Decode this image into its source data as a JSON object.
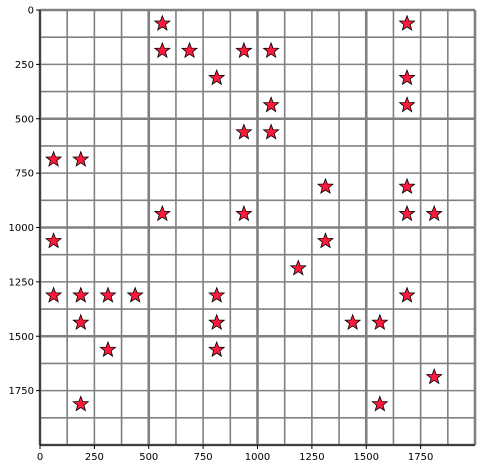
{
  "board": {
    "grid_size": 16,
    "cell_units": 125,
    "axis_max": 2000,
    "colors": {
      "background": "#ffffff",
      "grid_line": "#808080",
      "star_fill": "#ff1a3d",
      "star_stroke": "#000000",
      "axis": "#000000"
    },
    "x_ticks": [
      {
        "value": 0,
        "label": "0"
      },
      {
        "value": 250,
        "label": "250"
      },
      {
        "value": 500,
        "label": "500"
      },
      {
        "value": 750,
        "label": "750"
      },
      {
        "value": 1000,
        "label": "1000"
      },
      {
        "value": 1250,
        "label": "1250"
      },
      {
        "value": 1500,
        "label": "1500"
      },
      {
        "value": 1750,
        "label": "1750"
      }
    ],
    "y_ticks": [
      {
        "value": 0,
        "label": "0"
      },
      {
        "value": 250,
        "label": "250"
      },
      {
        "value": 500,
        "label": "500"
      },
      {
        "value": 750,
        "label": "750"
      },
      {
        "value": 1000,
        "label": "1000"
      },
      {
        "value": 1250,
        "label": "1250"
      },
      {
        "value": 1500,
        "label": "1500"
      },
      {
        "value": 1750,
        "label": "1750"
      }
    ],
    "stars": [
      [
        4,
        0
      ],
      [
        13,
        0
      ],
      [
        4,
        1
      ],
      [
        5,
        1
      ],
      [
        7,
        1
      ],
      [
        8,
        1
      ],
      [
        6,
        2
      ],
      [
        13,
        2
      ],
      [
        8,
        3
      ],
      [
        13,
        3
      ],
      [
        7,
        4
      ],
      [
        8,
        4
      ],
      [
        0,
        5
      ],
      [
        1,
        5
      ],
      [
        10,
        6
      ],
      [
        13,
        6
      ],
      [
        4,
        7
      ],
      [
        7,
        7
      ],
      [
        13,
        7
      ],
      [
        14,
        7
      ],
      [
        0,
        8
      ],
      [
        10,
        8
      ],
      [
        9,
        9
      ],
      [
        0,
        10
      ],
      [
        1,
        10
      ],
      [
        2,
        10
      ],
      [
        3,
        10
      ],
      [
        6,
        10
      ],
      [
        13,
        10
      ],
      [
        1,
        11
      ],
      [
        6,
        11
      ],
      [
        11,
        11
      ],
      [
        12,
        11
      ],
      [
        2,
        12
      ],
      [
        6,
        12
      ],
      [
        14,
        13
      ],
      [
        1,
        14
      ],
      [
        12,
        14
      ]
    ]
  }
}
